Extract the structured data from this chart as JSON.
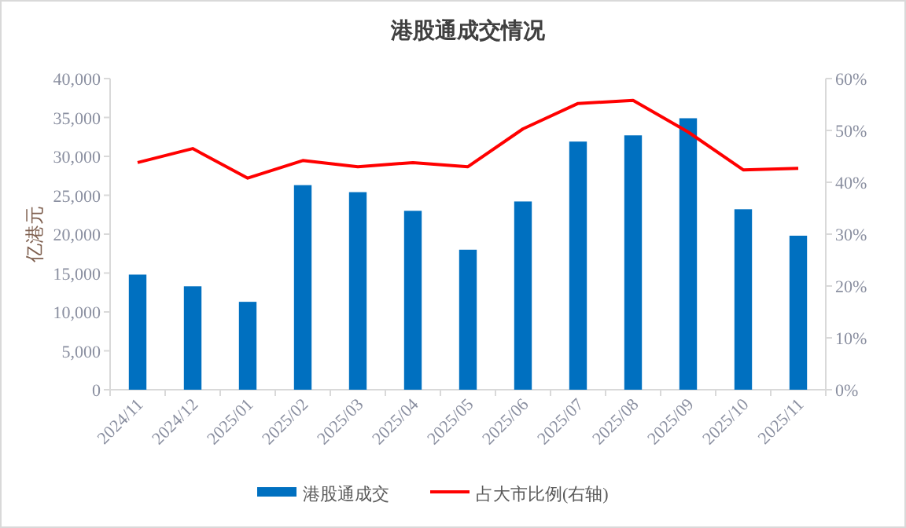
{
  "chart_data": {
    "type": "bar",
    "title": "港股通成交情况",
    "ylabel": "亿港元",
    "categories": [
      "2024/11",
      "2024/12",
      "2025/01",
      "2025/02",
      "2025/03",
      "2025/04",
      "2025/05",
      "2025/06",
      "2025/07",
      "2025/08",
      "2025/09",
      "2025/10",
      "2025/11"
    ],
    "series": [
      {
        "name": "港股通成交",
        "color": "#0070c0",
        "values": [
          14800,
          13300,
          11300,
          26300,
          25400,
          23000,
          18000,
          24200,
          31900,
          32700,
          34900,
          23200,
          19800
        ]
      },
      {
        "name": "占大市比例(右轴)",
        "type": "line",
        "axis": "y2",
        "color": "#ff0000",
        "values": [
          43.8,
          46.5,
          40.8,
          44.2,
          43,
          43.8,
          43,
          50.3,
          55.2,
          55.8,
          49.7,
          42.4,
          42.7
        ]
      }
    ],
    "ylim": [
      0,
      40000
    ],
    "yticks": [
      {
        "value": 0,
        "label": "0"
      },
      {
        "value": 5000,
        "label": "5,000"
      },
      {
        "value": 10000,
        "label": "10,000"
      },
      {
        "value": 15000,
        "label": "15,000"
      },
      {
        "value": 20000,
        "label": "20,000"
      },
      {
        "value": 25000,
        "label": "25,000"
      },
      {
        "value": 30000,
        "label": "30,000"
      },
      {
        "value": 35000,
        "label": "35,000"
      },
      {
        "value": 40000,
        "label": "40,000"
      }
    ],
    "y2lim": [
      0,
      60
    ],
    "y2ticks": [
      {
        "value": 0,
        "label": "0%"
      },
      {
        "value": 10,
        "label": "10%"
      },
      {
        "value": 20,
        "label": "20%"
      },
      {
        "value": 30,
        "label": "30%"
      },
      {
        "value": 40,
        "label": "40%"
      },
      {
        "value": 50,
        "label": "50%"
      },
      {
        "value": 60,
        "label": "60%"
      }
    ],
    "legend": "bottom"
  }
}
